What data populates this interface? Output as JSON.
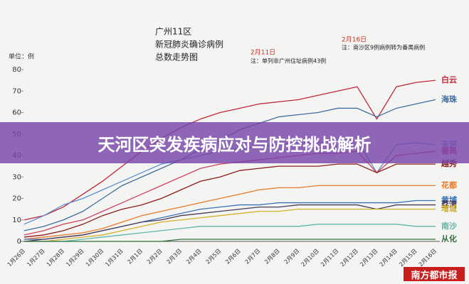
{
  "banner_title": "天河区突发疾病应对与防控挑战解析",
  "source": "南方都市报",
  "chart_data": {
    "type": "line",
    "title": [
      "广州11区",
      "新冠肺炎确诊病例",
      "总数走势图"
    ],
    "y_label": "单位：例",
    "annotations": [
      {
        "date": "2月11日",
        "text": "注：单列非广州住址病例43例"
      },
      {
        "date": "2月16日",
        "text": "注：南沙区9例病例转为番禺病例"
      }
    ],
    "categories": [
      "1月26日",
      "1月27日",
      "1月28日",
      "1月29日",
      "1月30日",
      "1月31日",
      "2月1日",
      "2月2日",
      "2月3日",
      "2月4日",
      "2月5日",
      "2月6日",
      "2月7日",
      "2月8日",
      "2月9日",
      "2月10日",
      "2月11日",
      "2月12日",
      "2月13日",
      "2月14日",
      "2月15日",
      "2月16日"
    ],
    "ylim": [
      0,
      80
    ],
    "yticks": [
      0,
      10,
      20,
      30,
      40,
      50,
      60,
      70,
      80
    ],
    "grid": false,
    "series": [
      {
        "name": "白云",
        "color": "#c0283a",
        "values": [
          10,
          12,
          16,
          22,
          28,
          35,
          42,
          48,
          53,
          57,
          60,
          62,
          64,
          65,
          66,
          68,
          70,
          72,
          57,
          72,
          74,
          75
        ]
      },
      {
        "name": "海珠",
        "color": "#3f6fa0",
        "values": [
          5,
          7,
          10,
          14,
          20,
          26,
          30,
          34,
          38,
          43,
          47,
          52,
          55,
          58,
          59,
          60,
          62,
          62,
          58,
          62,
          64,
          66
        ]
      },
      {
        "name": "天河",
        "color": "#5b8ed0",
        "values": [
          8,
          12,
          17,
          20,
          24,
          28,
          32,
          36,
          38,
          40,
          42,
          43,
          44,
          45,
          46,
          46,
          47,
          47,
          32,
          45,
          46,
          45
        ]
      },
      {
        "name": "番禺",
        "color": "#d04060",
        "values": [
          3,
          5,
          8,
          10,
          14,
          18,
          22,
          26,
          30,
          34,
          36,
          37,
          38,
          39,
          40,
          41,
          41,
          42,
          32,
          40,
          41,
          42
        ]
      },
      {
        "name": "越秀",
        "color": "#8b1c1c",
        "values": [
          2,
          3,
          5,
          8,
          12,
          15,
          17,
          20,
          24,
          28,
          30,
          33,
          34,
          35,
          35,
          35,
          36,
          36,
          32,
          36,
          36,
          36
        ]
      },
      {
        "name": "花都",
        "color": "#e87a2a",
        "values": [
          1,
          2,
          3,
          4,
          6,
          9,
          12,
          14,
          16,
          18,
          20,
          22,
          24,
          25,
          25,
          26,
          26,
          26,
          26,
          26,
          26,
          26
        ]
      },
      {
        "name": "黄埔",
        "color": "#3a74b8",
        "values": [
          1,
          1,
          2,
          3,
          5,
          7,
          9,
          11,
          13,
          15,
          16,
          17,
          17,
          18,
          18,
          18,
          18,
          18,
          18,
          18,
          19,
          19
        ]
      },
      {
        "name": "荔湾",
        "color": "#4a3a5a",
        "values": [
          0,
          1,
          2,
          3,
          5,
          7,
          9,
          10,
          12,
          13,
          14,
          15,
          16,
          16,
          17,
          17,
          17,
          17,
          15,
          17,
          17,
          17
        ]
      },
      {
        "name": "增城",
        "color": "#d4b030",
        "values": [
          0,
          0,
          1,
          2,
          3,
          5,
          7,
          9,
          10,
          11,
          12,
          13,
          14,
          14,
          15,
          15,
          15,
          15,
          15,
          15,
          15,
          15
        ]
      },
      {
        "name": "南沙",
        "color": "#5fb8a8",
        "values": [
          0,
          0,
          0,
          1,
          2,
          3,
          4,
          5,
          6,
          7,
          7,
          7,
          7,
          7,
          7,
          8,
          8,
          8,
          8,
          8,
          7,
          7
        ]
      },
      {
        "name": "从化",
        "color": "#2f6f3a",
        "values": [
          0,
          0,
          0,
          0,
          0,
          0,
          0,
          0,
          1,
          1,
          1,
          1,
          1,
          1,
          1,
          1,
          1,
          1,
          1,
          1,
          1,
          1
        ]
      }
    ]
  }
}
